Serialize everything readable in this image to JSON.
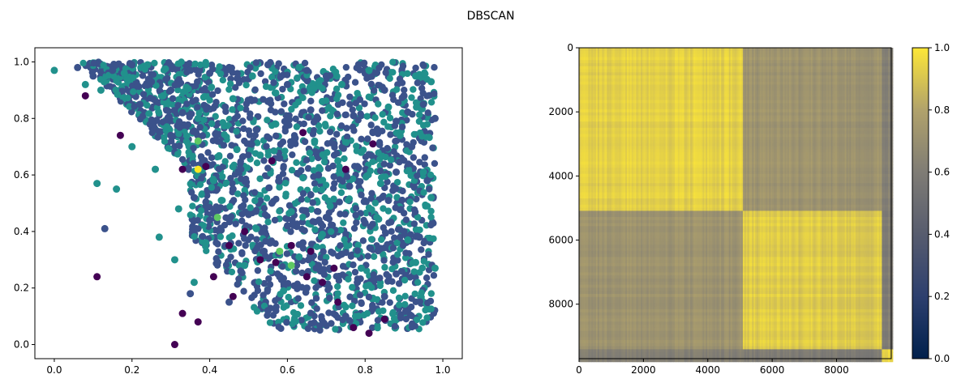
{
  "figure": {
    "title": "DBSCAN"
  },
  "chart_data": [
    {
      "type": "scatter",
      "title": "",
      "xlabel": "",
      "ylabel": "",
      "xlim": [
        -0.05,
        1.05
      ],
      "ylim": [
        -0.05,
        1.05
      ],
      "xticks": [
        "0.0",
        "0.2",
        "0.4",
        "0.6",
        "0.8",
        "1.0"
      ],
      "yticks": [
        "0.0",
        "0.2",
        "0.4",
        "0.6",
        "0.8",
        "1.0"
      ],
      "grid": false,
      "legend": "none",
      "cluster_colors": {
        "noise": "#440154",
        "cluster_0": "#3b528b",
        "cluster_1": "#21918c",
        "cluster_2": "#5ec962",
        "cluster_3": "#fde725"
      },
      "series": [
        {
          "cluster": "cluster_0",
          "x": [
            0.06,
            0.1,
            0.15,
            0.2,
            0.25,
            0.3,
            0.35,
            0.4,
            0.45,
            0.5,
            0.55,
            0.6,
            0.65,
            0.7,
            0.75,
            0.8,
            0.85,
            0.9,
            0.95,
            0.98,
            0.22,
            0.33,
            0.44,
            0.55,
            0.66,
            0.77,
            0.88,
            0.3,
            0.42,
            0.52,
            0.62,
            0.72,
            0.82,
            0.92,
            0.38,
            0.48,
            0.58,
            0.68,
            0.78,
            0.88,
            0.36,
            0.46,
            0.56,
            0.66,
            0.76,
            0.86,
            0.96,
            0.4,
            0.5,
            0.6,
            0.7,
            0.8,
            0.9,
            0.44,
            0.54,
            0.64,
            0.74,
            0.84,
            0.94,
            0.48,
            0.58,
            0.68,
            0.78,
            0.88,
            0.35,
            0.45,
            0.55,
            0.65,
            0.75,
            0.85,
            0.13
          ],
          "y": [
            0.98,
            0.95,
            0.97,
            0.99,
            0.93,
            0.9,
            0.97,
            0.96,
            0.98,
            0.94,
            0.99,
            0.92,
            0.97,
            0.95,
            0.93,
            0.96,
            0.9,
            0.88,
            0.85,
            0.8,
            0.85,
            0.82,
            0.84,
            0.86,
            0.83,
            0.81,
            0.79,
            0.74,
            0.72,
            0.76,
            0.73,
            0.71,
            0.75,
            0.7,
            0.64,
            0.62,
            0.66,
            0.6,
            0.63,
            0.61,
            0.52,
            0.55,
            0.5,
            0.53,
            0.56,
            0.51,
            0.58,
            0.44,
            0.46,
            0.42,
            0.45,
            0.43,
            0.4,
            0.35,
            0.33,
            0.36,
            0.32,
            0.34,
            0.38,
            0.26,
            0.24,
            0.28,
            0.22,
            0.25,
            0.18,
            0.15,
            0.12,
            0.2,
            0.1,
            0.17,
            0.41
          ]
        },
        {
          "cluster": "cluster_1",
          "x": [
            0.0,
            0.08,
            0.12,
            0.18,
            0.24,
            0.28,
            0.34,
            0.39,
            0.46,
            0.51,
            0.57,
            0.63,
            0.69,
            0.74,
            0.81,
            0.86,
            0.93,
            0.97,
            0.2,
            0.29,
            0.37,
            0.47,
            0.57,
            0.67,
            0.79,
            0.89,
            0.26,
            0.41,
            0.53,
            0.64,
            0.73,
            0.84,
            0.95,
            0.32,
            0.43,
            0.61,
            0.71,
            0.83,
            0.97,
            0.27,
            0.39,
            0.52,
            0.69,
            0.91,
            0.31,
            0.49,
            0.63,
            0.79,
            0.93,
            0.36,
            0.59,
            0.81,
            0.11,
            0.16,
            0.98
          ],
          "y": [
            0.97,
            0.92,
            0.9,
            0.96,
            0.99,
            0.88,
            0.91,
            0.99,
            0.87,
            0.95,
            0.89,
            0.98,
            0.86,
            0.92,
            0.97,
            0.84,
            0.95,
            0.93,
            0.7,
            0.77,
            0.8,
            0.69,
            0.78,
            0.72,
            0.68,
            0.74,
            0.62,
            0.58,
            0.67,
            0.59,
            0.65,
            0.57,
            0.61,
            0.48,
            0.51,
            0.47,
            0.49,
            0.45,
            0.52,
            0.38,
            0.36,
            0.41,
            0.39,
            0.37,
            0.3,
            0.28,
            0.31,
            0.27,
            0.29,
            0.22,
            0.19,
            0.21,
            0.57,
            0.55,
            0.27
          ]
        },
        {
          "cluster": "cluster_2",
          "x": [
            0.37,
            0.42,
            0.58,
            0.61
          ],
          "y": [
            0.72,
            0.45,
            0.33,
            0.28
          ]
        },
        {
          "cluster": "cluster_3",
          "x": [
            0.37
          ],
          "y": [
            0.62
          ]
        },
        {
          "cluster": "noise",
          "x": [
            0.08,
            0.11,
            0.17,
            0.31,
            0.33,
            0.37,
            0.41,
            0.45,
            0.49,
            0.53,
            0.57,
            0.61,
            0.65,
            0.69,
            0.73,
            0.77,
            0.81,
            0.85,
            0.33,
            0.39,
            0.56,
            0.64,
            0.75,
            0.82,
            0.72,
            0.66,
            0.46,
            0.61
          ],
          "y": [
            0.88,
            0.24,
            0.74,
            0.0,
            0.11,
            0.08,
            0.24,
            0.35,
            0.4,
            0.3,
            0.29,
            0.35,
            0.24,
            0.22,
            0.15,
            0.06,
            0.04,
            0.09,
            0.62,
            0.63,
            0.65,
            0.75,
            0.62,
            0.71,
            0.27,
            0.33,
            0.17,
            0.35
          ]
        }
      ]
    },
    {
      "type": "heatmap",
      "title": "",
      "xlabel": "",
      "ylabel": "",
      "xlim": [
        0,
        9700
      ],
      "ylim": [
        9700,
        0
      ],
      "xticks": [
        "0",
        "2000",
        "4000",
        "6000",
        "8000"
      ],
      "yticks": [
        "0",
        "2000",
        "4000",
        "6000",
        "8000"
      ],
      "colormap": "cividis",
      "colorbar": {
        "min": 0.0,
        "max": 1.0,
        "ticks": [
          "0.0",
          "0.2",
          "0.4",
          "0.6",
          "0.8",
          "1.0"
        ]
      },
      "block_boundaries": [
        0,
        5050,
        9400,
        9700
      ],
      "block_values": [
        [
          0.93,
          0.72,
          0.62
        ],
        [
          0.72,
          0.92,
          0.6
        ],
        [
          0.62,
          0.6,
          0.95
        ]
      ]
    }
  ]
}
